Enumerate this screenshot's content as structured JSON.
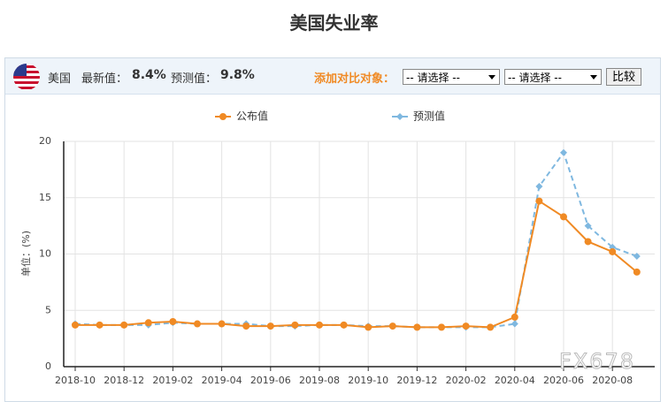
{
  "header": {
    "title": "美国失业率"
  },
  "toolbar": {
    "country": "美国",
    "latest_label": "最新值：",
    "latest_value": "8.4%",
    "forecast_label": "预测值：",
    "forecast_value": "9.8%",
    "compare_label": "添加对比对象：",
    "select_options": [
      "-- 请选择 --",
      "-- 请选择 --"
    ],
    "button": "比较"
  },
  "chart_data": {
    "type": "line",
    "ylabel": "单位：(%)",
    "categories": [
      "2018-10",
      null,
      "2018-12",
      null,
      "2019-02",
      null,
      "2019-04",
      null,
      "2019-06",
      null,
      "2019-08",
      null,
      "2019-10",
      null,
      "2019-12",
      null,
      "2020-02",
      null,
      "2020-04",
      null,
      "2020-06",
      null,
      "2020-08",
      null
    ],
    "series": [
      {
        "name": "公布值",
        "color": "#f08a24",
        "linestyle": "solid",
        "marker": "circle",
        "values": [
          3.7,
          3.7,
          3.7,
          3.9,
          4.0,
          3.8,
          3.8,
          3.6,
          3.6,
          3.7,
          3.7,
          3.7,
          3.5,
          3.6,
          3.5,
          3.5,
          3.6,
          3.5,
          4.4,
          14.7,
          13.3,
          11.1,
          10.2,
          8.4
        ]
      },
      {
        "name": "预测值",
        "color": "#7fb8e0",
        "linestyle": "dashed",
        "marker": "diamond",
        "values": [
          3.8,
          3.7,
          3.7,
          3.7,
          3.9,
          3.8,
          3.8,
          3.8,
          3.6,
          3.6,
          3.7,
          3.7,
          3.6,
          3.6,
          3.5,
          3.5,
          3.5,
          3.5,
          3.8,
          16.0,
          19.0,
          12.5,
          10.6,
          9.8
        ]
      }
    ],
    "ylim": [
      0,
      20
    ],
    "yticks": [
      0,
      5,
      10,
      15,
      20
    ],
    "grid": true
  },
  "watermark": "FX678"
}
